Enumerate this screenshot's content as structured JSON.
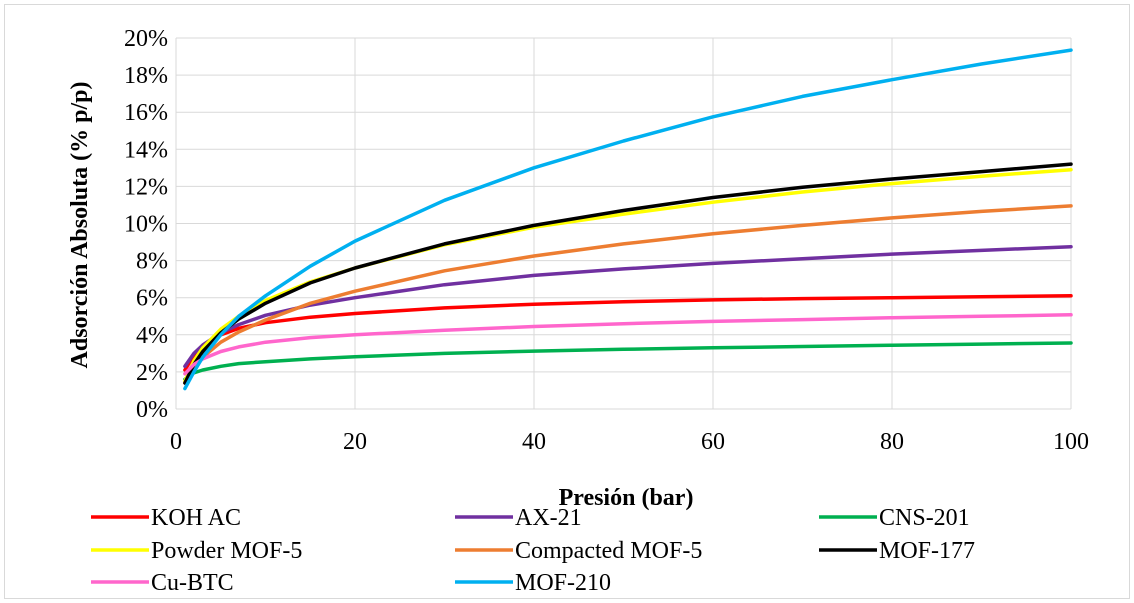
{
  "chart_data": {
    "type": "line",
    "title": "",
    "xlabel": "Presión (bar)",
    "ylabel": "Adsorción Absoluta (% p/p)",
    "xlim": [
      0,
      100
    ],
    "ylim": [
      0,
      20
    ],
    "x_ticks": [
      "0",
      "20",
      "40",
      "60",
      "80",
      "100"
    ],
    "y_ticks": [
      "0%",
      "2%",
      "4%",
      "6%",
      "8%",
      "10%",
      "12%",
      "14%",
      "16%",
      "18%",
      "20%"
    ],
    "grid": true,
    "legend_position": "bottom",
    "x": [
      1,
      2,
      3,
      5,
      7,
      10,
      15,
      20,
      30,
      40,
      50,
      60,
      70,
      80,
      90,
      100
    ],
    "series": [
      {
        "name": "KOH AC",
        "color": "#ff0000",
        "values": [
          2.1,
          2.9,
          3.4,
          4.0,
          4.35,
          4.65,
          4.95,
          5.15,
          5.45,
          5.65,
          5.78,
          5.88,
          5.95,
          6.0,
          6.05,
          6.1
        ]
      },
      {
        "name": "AX-21",
        "color": "#7030a0",
        "values": [
          2.3,
          3.0,
          3.45,
          4.1,
          4.55,
          5.05,
          5.6,
          6.0,
          6.7,
          7.2,
          7.55,
          7.85,
          8.1,
          8.35,
          8.55,
          8.75
        ]
      },
      {
        "name": "CNS-201",
        "color": "#00b050",
        "values": [
          1.6,
          1.95,
          2.1,
          2.3,
          2.45,
          2.55,
          2.7,
          2.82,
          3.0,
          3.12,
          3.22,
          3.3,
          3.37,
          3.44,
          3.5,
          3.56
        ]
      },
      {
        "name": "Powder MOF-5",
        "color": "#ffff00",
        "values": [
          1.5,
          2.6,
          3.3,
          4.3,
          5.0,
          5.85,
          6.85,
          7.6,
          8.85,
          9.8,
          10.5,
          11.15,
          11.7,
          12.15,
          12.55,
          12.9
        ]
      },
      {
        "name": "Compacted MOF-5",
        "color": "#ed7d31",
        "values": [
          1.4,
          2.2,
          2.8,
          3.6,
          4.15,
          4.8,
          5.7,
          6.35,
          7.45,
          8.25,
          8.9,
          9.45,
          9.9,
          10.3,
          10.65,
          10.95
        ]
      },
      {
        "name": "MOF-177",
        "color": "#000000",
        "values": [
          1.4,
          2.4,
          3.1,
          4.1,
          4.85,
          5.7,
          6.8,
          7.6,
          8.9,
          9.9,
          10.7,
          11.4,
          11.95,
          12.4,
          12.8,
          13.2
        ]
      },
      {
        "name": "Cu-BTC",
        "color": "#ff66cc",
        "values": [
          1.9,
          2.4,
          2.7,
          3.1,
          3.35,
          3.6,
          3.85,
          4.0,
          4.25,
          4.45,
          4.6,
          4.72,
          4.82,
          4.92,
          5.0,
          5.08
        ]
      },
      {
        "name": "MOF-210",
        "color": "#00b0f0",
        "values": [
          1.1,
          2.0,
          2.8,
          4.0,
          5.0,
          6.1,
          7.7,
          9.05,
          11.25,
          13.0,
          14.45,
          15.75,
          16.85,
          17.75,
          18.6,
          19.35
        ]
      }
    ]
  }
}
